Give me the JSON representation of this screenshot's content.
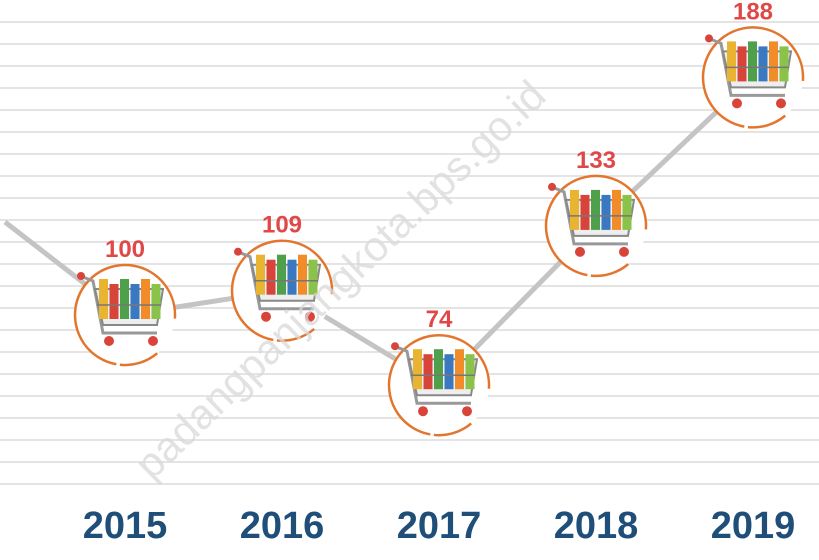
{
  "chart_data": {
    "type": "line",
    "categories": [
      "2015",
      "2016",
      "2017",
      "2018",
      "2019"
    ],
    "values": [
      100,
      109,
      74,
      133,
      188
    ],
    "color": "#c4c4c4",
    "label_color": "#e04848",
    "cart_ring_color": "#e3762e",
    "watermark": "padangpanjangkota.bps.go.id"
  }
}
